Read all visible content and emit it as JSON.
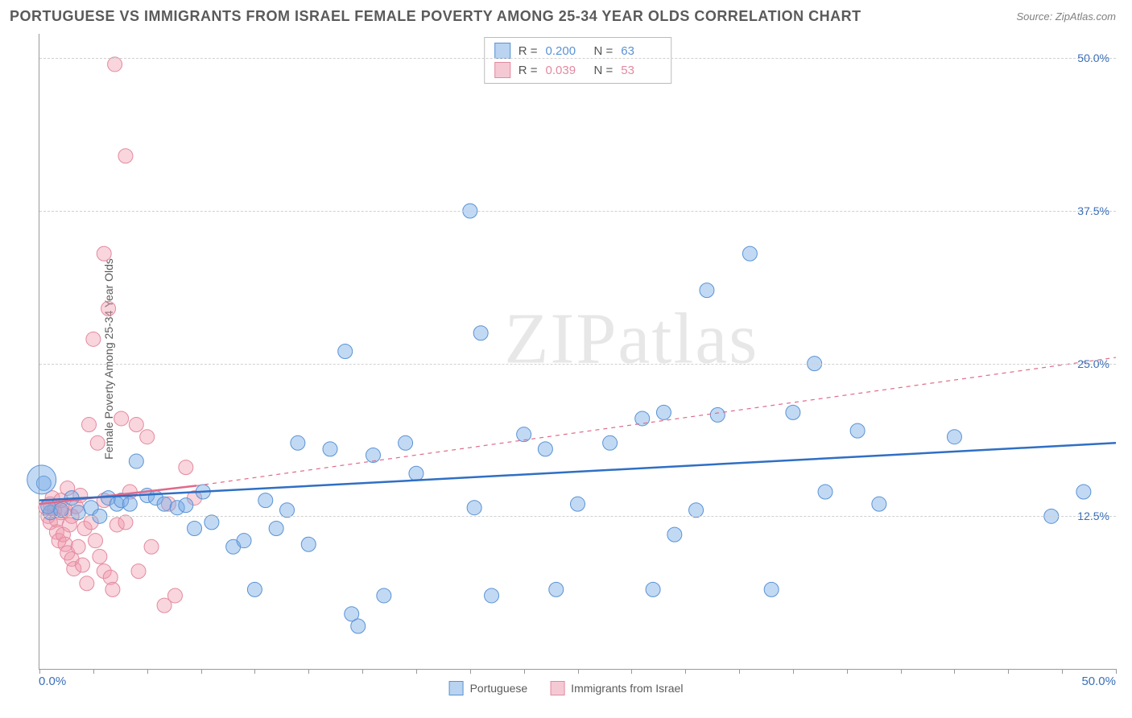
{
  "title": "PORTUGUESE VS IMMIGRANTS FROM ISRAEL FEMALE POVERTY AMONG 25-34 YEAR OLDS CORRELATION CHART",
  "source": "Source: ZipAtlas.com",
  "y_axis_label": "Female Poverty Among 25-34 Year Olds",
  "watermark_a": "ZIP",
  "watermark_b": "atlas",
  "chart": {
    "type": "scatter",
    "xlim": [
      0,
      50
    ],
    "ylim": [
      0,
      52
    ],
    "x_tick_step": 2.5,
    "y_gridlines": [
      12.5,
      25.0,
      37.5,
      50.0
    ],
    "y_tick_labels": [
      "12.5%",
      "25.0%",
      "37.5%",
      "50.0%"
    ],
    "x_left_label": "0.0%",
    "x_right_label": "50.0%",
    "background_color": "#ffffff",
    "grid_color": "#d0d0d0",
    "axis_color": "#999999",
    "axis_label_color": "#3b6fb6"
  },
  "series": {
    "portuguese": {
      "label": "Portuguese",
      "color_fill": "rgba(120,170,230,0.45)",
      "color_stroke": "#5a93d4",
      "swatch_fill": "#b9d3f0",
      "swatch_border": "#5a93d4",
      "r_value": "0.200",
      "n_value": "63",
      "trend": {
        "x1": 0,
        "y1": 13.8,
        "x2": 50,
        "y2": 18.5,
        "ext_x2": 50,
        "ext_y2": 18.5,
        "solid_to_x": 50
      },
      "marker_radius": 9,
      "points": [
        [
          0.2,
          15.2
        ],
        [
          0.5,
          12.8
        ],
        [
          0.4,
          13.3
        ],
        [
          1.0,
          13.0
        ],
        [
          1.5,
          14.0
        ],
        [
          1.8,
          12.8
        ],
        [
          2.4,
          13.2
        ],
        [
          2.8,
          12.5
        ],
        [
          3.2,
          14.0
        ],
        [
          3.6,
          13.5
        ],
        [
          3.8,
          13.8
        ],
        [
          4.2,
          13.5
        ],
        [
          4.5,
          17.0
        ],
        [
          5.0,
          14.2
        ],
        [
          5.4,
          14.0
        ],
        [
          5.8,
          13.5
        ],
        [
          6.4,
          13.2
        ],
        [
          6.8,
          13.4
        ],
        [
          7.2,
          11.5
        ],
        [
          7.6,
          14.5
        ],
        [
          8.0,
          12.0
        ],
        [
          9.0,
          10.0
        ],
        [
          9.5,
          10.5
        ],
        [
          10.0,
          6.5
        ],
        [
          10.5,
          13.8
        ],
        [
          11.0,
          11.5
        ],
        [
          11.5,
          13.0
        ],
        [
          12.0,
          18.5
        ],
        [
          12.5,
          10.2
        ],
        [
          13.5,
          18.0
        ],
        [
          14.2,
          26.0
        ],
        [
          14.5,
          4.5
        ],
        [
          14.8,
          3.5
        ],
        [
          15.5,
          17.5
        ],
        [
          16.0,
          6.0
        ],
        [
          17.0,
          18.5
        ],
        [
          17.5,
          16.0
        ],
        [
          20.0,
          37.5
        ],
        [
          20.2,
          13.2
        ],
        [
          20.5,
          27.5
        ],
        [
          21.0,
          6.0
        ],
        [
          22.5,
          19.2
        ],
        [
          23.5,
          18.0
        ],
        [
          24.0,
          6.5
        ],
        [
          25.0,
          13.5
        ],
        [
          26.5,
          18.5
        ],
        [
          28.0,
          20.5
        ],
        [
          28.5,
          6.5
        ],
        [
          29.0,
          21.0
        ],
        [
          29.5,
          11.0
        ],
        [
          30.5,
          13.0
        ],
        [
          31.0,
          31.0
        ],
        [
          31.5,
          20.8
        ],
        [
          33.0,
          34.0
        ],
        [
          34.0,
          6.5
        ],
        [
          35.0,
          21.0
        ],
        [
          36.0,
          25.0
        ],
        [
          36.5,
          14.5
        ],
        [
          38.0,
          19.5
        ],
        [
          39.0,
          13.5
        ],
        [
          42.5,
          19.0
        ],
        [
          47.0,
          12.5
        ],
        [
          48.5,
          14.5
        ]
      ]
    },
    "israel": {
      "label": "Immigrants from Israel",
      "color_fill": "rgba(240,150,170,0.40)",
      "color_stroke": "#e38aa0",
      "swatch_fill": "#f5c9d4",
      "swatch_border": "#e38aa0",
      "r_value": "0.039",
      "n_value": "53",
      "trend": {
        "x1": 0,
        "y1": 13.5,
        "x2": 7.3,
        "y2": 15.0,
        "ext_x2": 50,
        "ext_y2": 25.5
      },
      "marker_radius": 9,
      "points": [
        [
          0.3,
          13.2
        ],
        [
          0.4,
          12.5
        ],
        [
          0.5,
          12.0
        ],
        [
          0.5,
          13.5
        ],
        [
          0.6,
          14.0
        ],
        [
          0.7,
          13.0
        ],
        [
          0.8,
          12.2
        ],
        [
          0.8,
          11.2
        ],
        [
          0.9,
          10.5
        ],
        [
          1.0,
          12.8
        ],
        [
          1.0,
          13.8
        ],
        [
          1.1,
          11.0
        ],
        [
          1.2,
          10.2
        ],
        [
          1.2,
          13.0
        ],
        [
          1.3,
          14.8
        ],
        [
          1.3,
          9.5
        ],
        [
          1.4,
          11.8
        ],
        [
          1.5,
          12.5
        ],
        [
          1.5,
          9.0
        ],
        [
          1.6,
          8.2
        ],
        [
          1.7,
          13.3
        ],
        [
          1.8,
          10.0
        ],
        [
          1.9,
          14.2
        ],
        [
          2.0,
          8.5
        ],
        [
          2.1,
          11.5
        ],
        [
          2.2,
          7.0
        ],
        [
          2.3,
          20.0
        ],
        [
          2.4,
          12.0
        ],
        [
          2.5,
          27.0
        ],
        [
          2.6,
          10.5
        ],
        [
          2.7,
          18.5
        ],
        [
          2.8,
          9.2
        ],
        [
          3.0,
          34.0
        ],
        [
          3.0,
          13.8
        ],
        [
          3.0,
          8.0
        ],
        [
          3.2,
          29.5
        ],
        [
          3.3,
          7.5
        ],
        [
          3.4,
          6.5
        ],
        [
          3.5,
          49.5
        ],
        [
          3.6,
          11.8
        ],
        [
          3.8,
          20.5
        ],
        [
          4.0,
          12.0
        ],
        [
          4.0,
          42.0
        ],
        [
          4.2,
          14.5
        ],
        [
          4.5,
          20.0
        ],
        [
          4.6,
          8.0
        ],
        [
          5.0,
          19.0
        ],
        [
          5.2,
          10.0
        ],
        [
          5.8,
          5.2
        ],
        [
          6.0,
          13.5
        ],
        [
          6.3,
          6.0
        ],
        [
          6.8,
          16.5
        ],
        [
          7.2,
          14.0
        ]
      ]
    }
  },
  "stats_labels": {
    "r": "R =",
    "n": "N ="
  }
}
